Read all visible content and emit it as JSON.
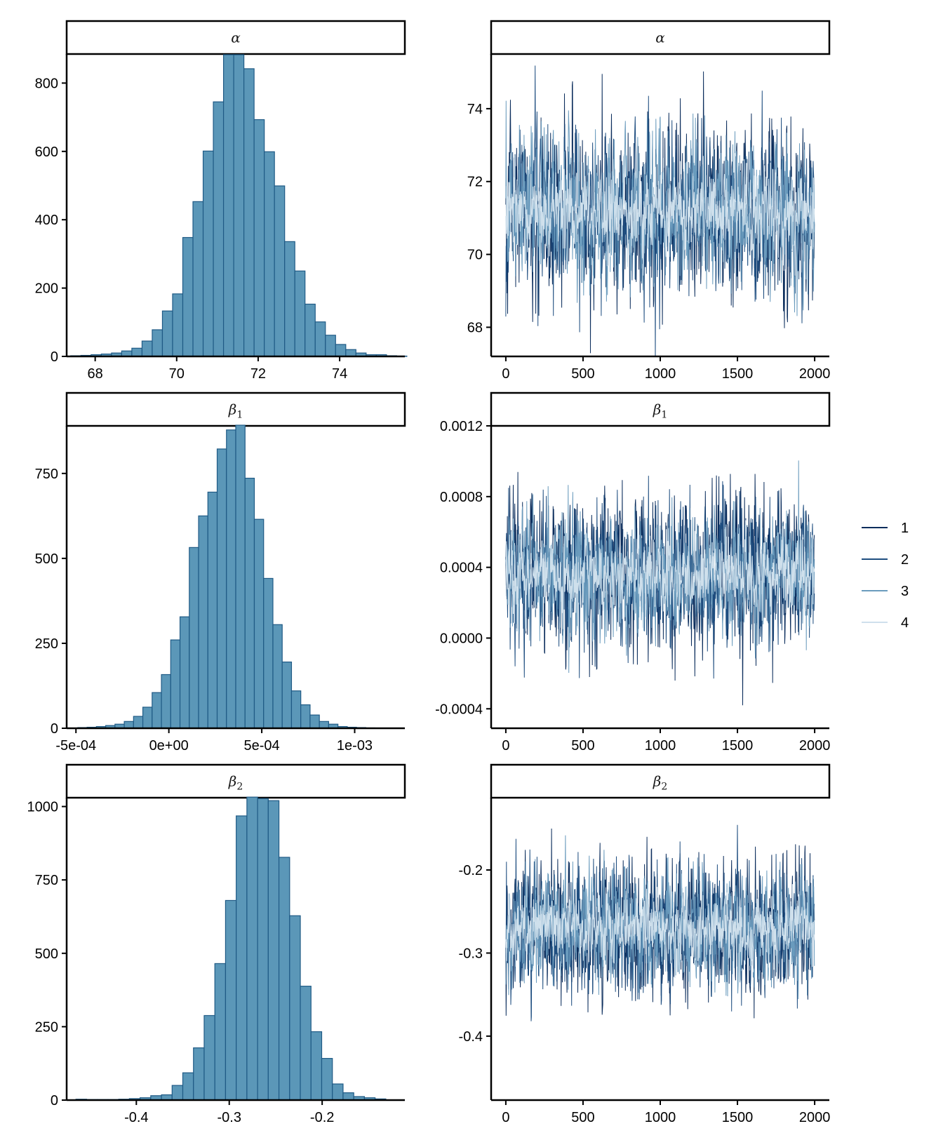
{
  "colors": {
    "hist_fill": "#5b97b8",
    "hist_stroke": "#1f5a85",
    "chain_1": "#0b2d5c",
    "chain_2": "#1f4e80",
    "chain_3": "#6a9bbd",
    "chain_4": "#cfe0ec"
  },
  "chart_data": [
    {
      "type": "bar",
      "panel": "histogram",
      "title": "α",
      "xticks": [
        "68",
        "70",
        "72",
        "74"
      ],
      "xtick_values": [
        68,
        70,
        72,
        74
      ],
      "yticks": [
        "0",
        "200",
        "400",
        "600",
        "800"
      ],
      "ytick_values": [
        0,
        200,
        400,
        600,
        800
      ],
      "xlim": [
        67.3,
        75.6
      ],
      "ylim": [
        0,
        885
      ],
      "bin_start": 67.4,
      "bin_width": 0.25,
      "values": [
        2,
        3,
        5,
        7,
        10,
        16,
        24,
        45,
        78,
        133,
        183,
        348,
        453,
        601,
        745,
        883,
        883,
        842,
        693,
        599,
        499,
        336,
        250,
        153,
        101,
        62,
        35,
        20,
        10,
        5,
        5,
        2,
        1
      ]
    },
    {
      "type": "line",
      "panel": "trace",
      "title": "α",
      "xticks": [
        "0",
        "500",
        "1000",
        "1500",
        "2000"
      ],
      "xtick_values": [
        0,
        500,
        1000,
        1500,
        2000
      ],
      "yticks": [
        "68",
        "70",
        "72",
        "74"
      ],
      "ytick_values": [
        68,
        70,
        72,
        74
      ],
      "xlim": [
        -95,
        2095
      ],
      "ylim": [
        67.2,
        75.5
      ],
      "iterations": 2000,
      "center": 71.2,
      "sd": 1.0
    },
    {
      "type": "bar",
      "panel": "histogram",
      "title": "β1",
      "xticks": [
        "-5e-04",
        "0e+00",
        "5e-04",
        "1e-03"
      ],
      "xtick_values": [
        -0.0005,
        0,
        0.0005,
        0.001
      ],
      "yticks": [
        "0",
        "250",
        "500",
        "750"
      ],
      "ytick_values": [
        0,
        250,
        500,
        750
      ],
      "xlim": [
        -0.00055,
        0.00127
      ],
      "ylim": [
        0,
        890
      ],
      "bin_start": -0.00049,
      "bin_width": 5e-05,
      "values": [
        2,
        3,
        5,
        8,
        12,
        20,
        35,
        62,
        105,
        158,
        260,
        328,
        532,
        625,
        695,
        822,
        878,
        892,
        736,
        615,
        441,
        305,
        195,
        110,
        69,
        39,
        20,
        12,
        5,
        3,
        2,
        1
      ]
    },
    {
      "type": "line",
      "panel": "trace",
      "title": "β1",
      "xticks": [
        "0",
        "500",
        "1000",
        "1500",
        "2000"
      ],
      "xtick_values": [
        0,
        500,
        1000,
        1500,
        2000
      ],
      "yticks": [
        "-0.0004",
        "0.0000",
        "0.0004",
        "0.0008",
        "0.0012"
      ],
      "ytick_values": [
        -0.0004,
        0,
        0.0004,
        0.0008,
        0.0012
      ],
      "xlim": [
        -95,
        2095
      ],
      "ylim": [
        -0.00051,
        0.0012
      ],
      "iterations": 2000,
      "center": 0.00036,
      "sd": 0.00018
    },
    {
      "type": "bar",
      "panel": "histogram",
      "title": "β2",
      "xticks": [
        "-0.4",
        "-0.3",
        "-0.2"
      ],
      "xtick_values": [
        -0.4,
        -0.3,
        -0.2
      ],
      "yticks": [
        "0",
        "250",
        "500",
        "750",
        "1000"
      ],
      "ytick_values": [
        0,
        250,
        500,
        750,
        1000
      ],
      "xlim": [
        -0.475,
        -0.111
      ],
      "ylim": [
        0,
        1030
      ],
      "bin_start": -0.465,
      "bin_width": 0.0115,
      "values": [
        3,
        2,
        2,
        2,
        3,
        5,
        8,
        15,
        18,
        50,
        93,
        178,
        288,
        465,
        680,
        968,
        1032,
        1027,
        1020,
        827,
        628,
        388,
        233,
        142,
        55,
        25,
        12,
        8,
        4
      ]
    },
    {
      "type": "line",
      "panel": "trace",
      "title": "β2",
      "xticks": [
        "0",
        "500",
        "1000",
        "1500",
        "2000"
      ],
      "xtick_values": [
        0,
        500,
        1000,
        1500,
        2000
      ],
      "yticks": [
        "-0.4",
        "-0.3",
        "-0.2"
      ],
      "ytick_values": [
        -0.4,
        -0.3,
        -0.2
      ],
      "xlim": [
        -95,
        2095
      ],
      "ylim": [
        -0.477,
        -0.113
      ],
      "iterations": 2000,
      "center": -0.27,
      "sd": 0.035
    }
  ],
  "legend": {
    "entries": [
      "1",
      "2",
      "3",
      "4"
    ]
  }
}
